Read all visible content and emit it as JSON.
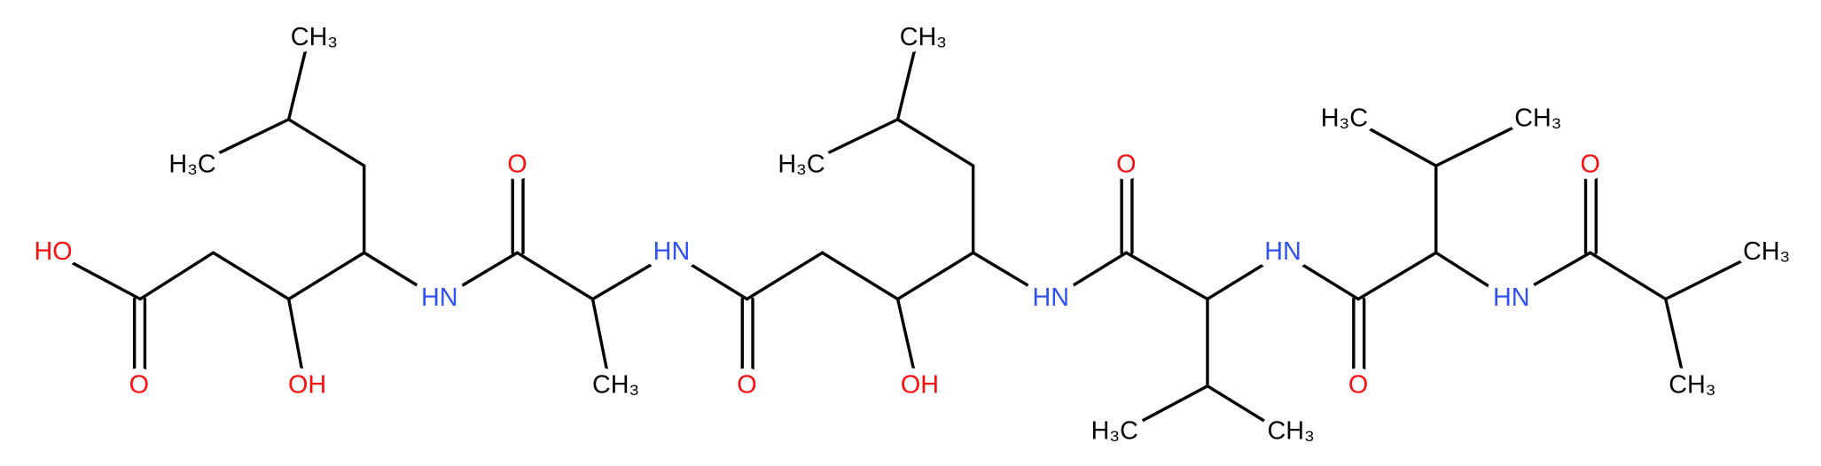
{
  "atoms": [
    "HO",
    "O",
    "OH",
    "CH₃",
    "H₃C",
    "HN",
    "O",
    "CH₃",
    "HN",
    "O",
    "OH",
    "CH₃",
    "H₃C",
    "HN",
    "O",
    "H₃C",
    "CH₃",
    "HN",
    "O",
    "H₃C",
    "CH₃",
    "HN",
    "O",
    "CH₃",
    "CH₃"
  ]
}
